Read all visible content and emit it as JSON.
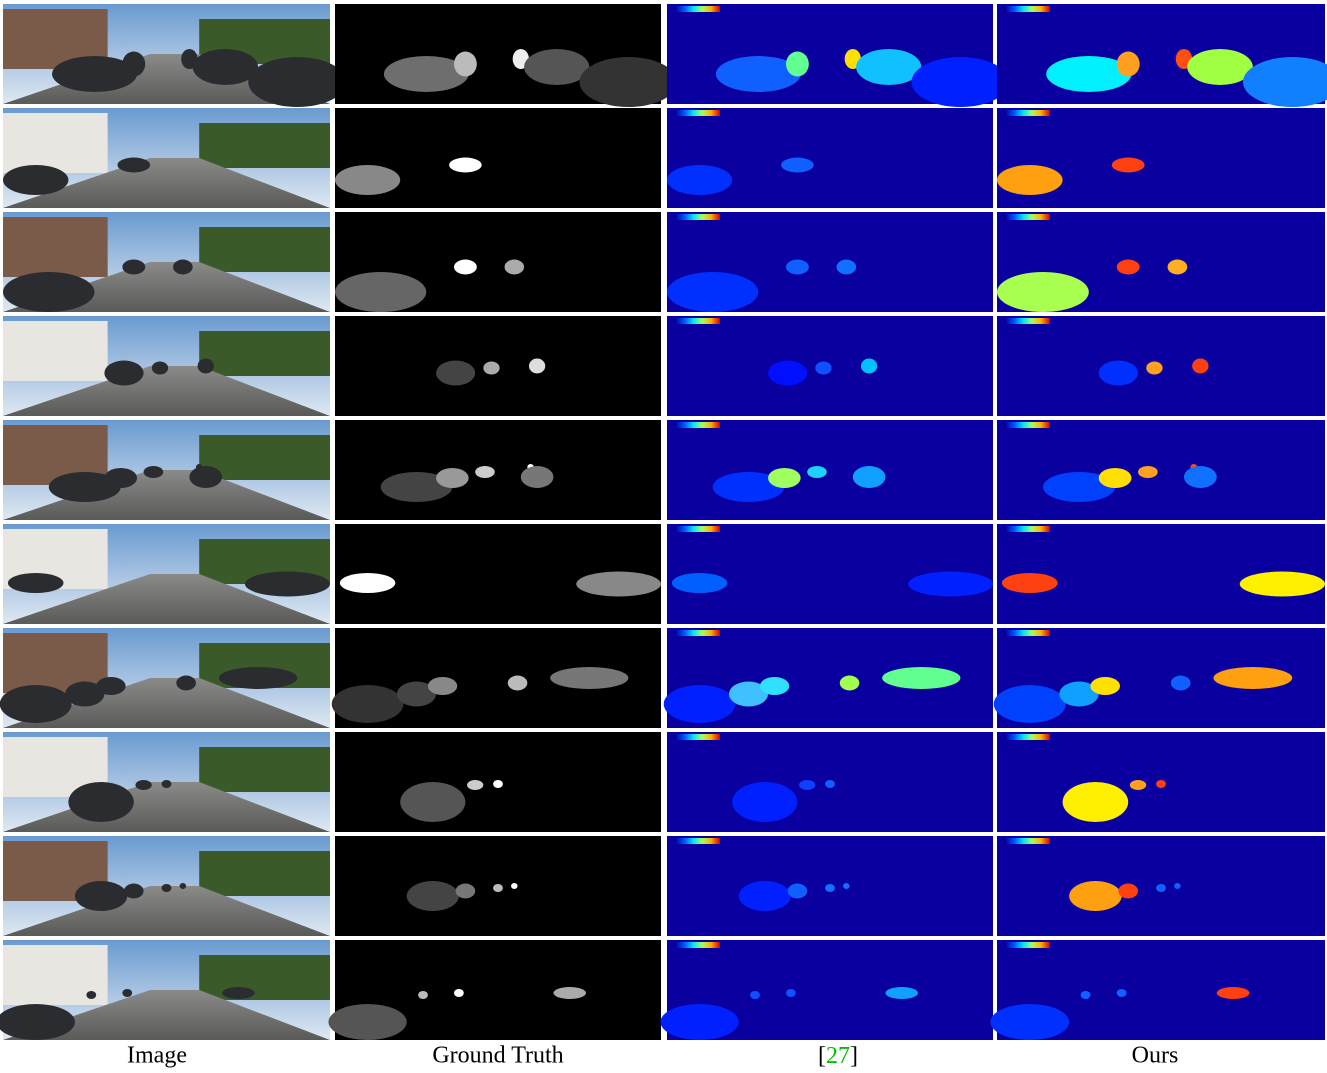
{
  "figure": {
    "columns": [
      {
        "label": "Image"
      },
      {
        "label": "Ground Truth"
      },
      {
        "open": "[",
        "ref": "27",
        "close": "]"
      },
      {
        "label": "Ours"
      }
    ]
  }
}
